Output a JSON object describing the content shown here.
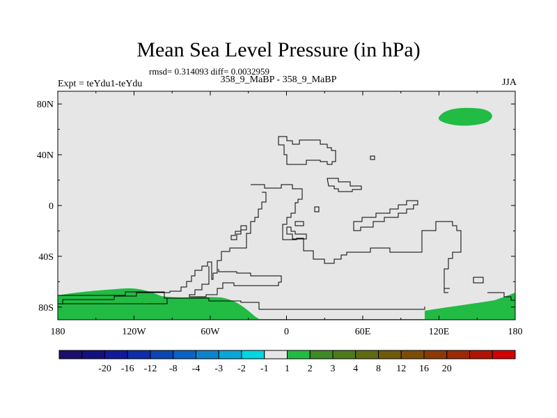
{
  "title": "Mean Sea Level Pressure (in hPa)",
  "stats": "rmsd= 0.314093 diff= 0.0032959",
  "subtitle": "358_9_MaBP - 358_9_MaBP",
  "experiment": "Expt = teYdu1-teYdu",
  "season": "JJA",
  "map": {
    "lon_range": [
      -180,
      180
    ],
    "lat_range": [
      -90,
      90
    ],
    "x_ticks": [
      {
        "lon": -180,
        "label": "180"
      },
      {
        "lon": -120,
        "label": "120W"
      },
      {
        "lon": -60,
        "label": "60W"
      },
      {
        "lon": 0,
        "label": "0"
      },
      {
        "lon": 60,
        "label": "60E"
      },
      {
        "lon": 120,
        "label": "120E"
      },
      {
        "lon": 180,
        "label": "180"
      }
    ],
    "y_ticks": [
      {
        "lat": 80,
        "label": "80N"
      },
      {
        "lat": 40,
        "label": "40N"
      },
      {
        "lat": 0,
        "label": "0"
      },
      {
        "lat": -40,
        "label": "40S"
      },
      {
        "lat": -80,
        "label": "80S"
      }
    ],
    "colors": {
      "background_field": "#e6e6e6",
      "positive_field": "#22bb44",
      "coastline": "#000000"
    }
  },
  "colorbar": {
    "colors": [
      "#1c0f6b",
      "#13107e",
      "#101a9a",
      "#0e2da9",
      "#0b46b3",
      "#0a62c2",
      "#0c84cb",
      "#0aa6d8",
      "#00d6e0",
      "#e6e6e6",
      "#22bb44",
      "#3d8a26",
      "#4f7a1c",
      "#606a12",
      "#6d5a0d",
      "#7d4d08",
      "#8c3a05",
      "#9c2a04",
      "#b01502",
      "#d20000"
    ],
    "labels": [
      "-20",
      "-16",
      "-12",
      "-8",
      "-4",
      "-3",
      "-2",
      "-1",
      "1",
      "2",
      "3",
      "4",
      "8",
      "12",
      "16",
      "20"
    ]
  }
}
